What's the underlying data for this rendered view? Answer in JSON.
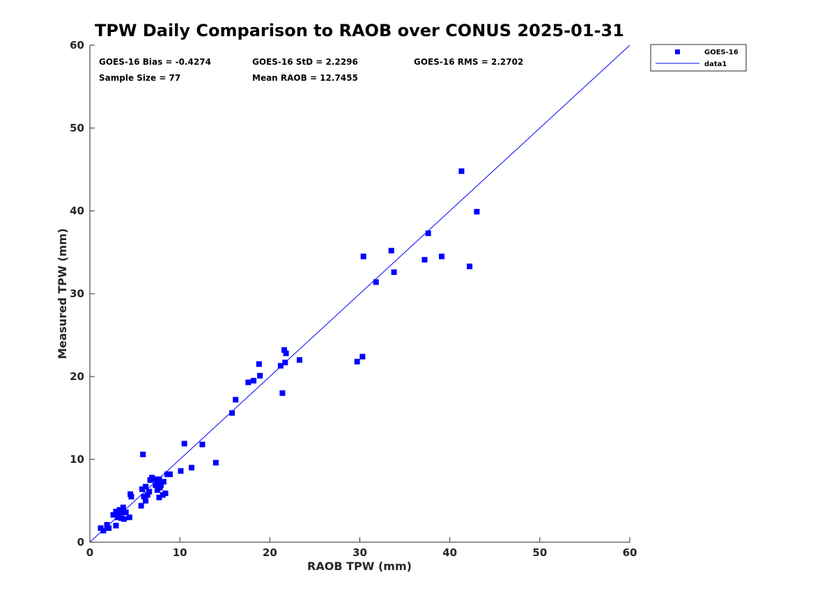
{
  "chart_data": {
    "type": "scatter",
    "title": "TPW Daily Comparison to RAOB over CONUS 2025-01-31",
    "xlabel": "RAOB TPW (mm)",
    "ylabel": "Measured TPW (mm)",
    "xlim": [
      0,
      60
    ],
    "ylim": [
      0,
      60
    ],
    "xticks": [
      "0",
      "10",
      "20",
      "30",
      "40",
      "50",
      "60"
    ],
    "yticks": [
      "0",
      "10",
      "20",
      "30",
      "40",
      "50",
      "60"
    ],
    "grid": false,
    "legend_position": "outside-top-right",
    "colors": {
      "marker": "#0000ff",
      "line": "#0000ff",
      "axis": "#262626"
    },
    "annotations": {
      "bias": "GOES-16 Bias = -0.4274",
      "std": "GOES-16 StD = 2.2296",
      "rms": "GOES-16 RMS = 2.2702",
      "sample_size": "Sample Size = 77",
      "mean_raob": "Mean RAOB = 12.7455"
    },
    "series": [
      {
        "name": "GOES-16",
        "marker": "square",
        "points": [
          [
            1.2,
            1.7
          ],
          [
            1.5,
            1.4
          ],
          [
            1.9,
            2.1
          ],
          [
            2.1,
            1.7
          ],
          [
            2.6,
            3.3
          ],
          [
            2.9,
            2.0
          ],
          [
            2.9,
            3.7
          ],
          [
            3.1,
            3.0
          ],
          [
            3.2,
            3.4
          ],
          [
            3.3,
            3.9
          ],
          [
            3.5,
            2.9
          ],
          [
            3.6,
            3.6
          ],
          [
            3.7,
            4.2
          ],
          [
            3.8,
            2.8
          ],
          [
            4.0,
            3.6
          ],
          [
            4.4,
            3.0
          ],
          [
            4.5,
            5.8
          ],
          [
            4.6,
            5.5
          ],
          [
            5.7,
            4.4
          ],
          [
            5.8,
            6.4
          ],
          [
            6.0,
            5.5
          ],
          [
            5.9,
            10.6
          ],
          [
            6.2,
            5.0
          ],
          [
            6.2,
            6.7
          ],
          [
            6.4,
            5.7
          ],
          [
            6.6,
            6.1
          ],
          [
            6.7,
            7.5
          ],
          [
            6.9,
            7.8
          ],
          [
            7.2,
            7.6
          ],
          [
            7.3,
            6.9
          ],
          [
            7.5,
            6.3
          ],
          [
            7.6,
            7.3
          ],
          [
            7.7,
            5.4
          ],
          [
            7.7,
            7.6
          ],
          [
            7.8,
            6.6
          ],
          [
            7.9,
            6.9
          ],
          [
            8.1,
            5.7
          ],
          [
            8.2,
            7.3
          ],
          [
            8.4,
            5.9
          ],
          [
            8.6,
            8.2
          ],
          [
            8.9,
            8.2
          ],
          [
            10.1,
            8.6
          ],
          [
            10.5,
            11.9
          ],
          [
            11.3,
            9.0
          ],
          [
            12.5,
            11.8
          ],
          [
            14.0,
            9.6
          ],
          [
            15.8,
            15.6
          ],
          [
            16.2,
            17.2
          ],
          [
            17.6,
            19.3
          ],
          [
            18.2,
            19.5
          ],
          [
            18.8,
            21.5
          ],
          [
            18.9,
            20.1
          ],
          [
            21.2,
            21.3
          ],
          [
            21.4,
            18.0
          ],
          [
            21.6,
            23.2
          ],
          [
            21.7,
            21.7
          ],
          [
            21.8,
            22.8
          ],
          [
            23.3,
            22.0
          ],
          [
            29.7,
            21.8
          ],
          [
            30.3,
            22.4
          ],
          [
            30.4,
            34.5
          ],
          [
            31.8,
            31.4
          ],
          [
            33.5,
            35.2
          ],
          [
            33.8,
            32.6
          ],
          [
            37.2,
            34.1
          ],
          [
            37.6,
            37.3
          ],
          [
            39.1,
            34.5
          ],
          [
            41.3,
            44.8
          ],
          [
            42.2,
            33.3
          ],
          [
            43.0,
            39.9
          ]
        ]
      },
      {
        "name": "data1",
        "style": "line",
        "x": [
          0,
          60
        ],
        "y": [
          0,
          60
        ]
      }
    ]
  }
}
